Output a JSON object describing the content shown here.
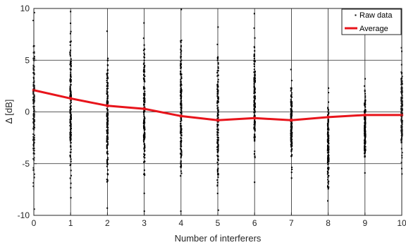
{
  "chart_data": {
    "type": "scatter",
    "title": "",
    "xlabel": "Number of interferers",
    "ylabel": "Δ [dB]",
    "xlim": [
      0,
      10
    ],
    "ylim": [
      -10,
      10
    ],
    "xticks": [
      0,
      1,
      2,
      3,
      4,
      5,
      6,
      7,
      8,
      9,
      10
    ],
    "yticks": [
      -10,
      -5,
      0,
      5,
      10
    ],
    "xtick_labels": [
      "0",
      "1",
      "2",
      "3",
      "4",
      "5",
      "6",
      "7",
      "8",
      "9",
      "10"
    ],
    "ytick_labels": [
      "-10",
      "-5",
      "0",
      "5",
      "10"
    ],
    "grid": true,
    "legend_position": "top-right",
    "series": [
      {
        "name": "Raw data",
        "kind": "scatter",
        "color": "#000000",
        "ranges": [
          {
            "x": 0,
            "y_min": -9.4,
            "y_max": 9.6
          },
          {
            "x": 1,
            "y_min": -8.3,
            "y_max": 9.7
          },
          {
            "x": 2,
            "y_min": -9.3,
            "y_max": 7.8
          },
          {
            "x": 3,
            "y_min": -9.6,
            "y_max": 8.6
          },
          {
            "x": 4,
            "y_min": -9.6,
            "y_max": 9.9
          },
          {
            "x": 5,
            "y_min": -9.5,
            "y_max": 8.2
          },
          {
            "x": 6,
            "y_min": -6.8,
            "y_max": 9.5
          },
          {
            "x": 7,
            "y_min": -6.4,
            "y_max": 4.1
          },
          {
            "x": 8,
            "y_min": -8.6,
            "y_max": 2.3
          },
          {
            "x": 9,
            "y_min": -5.9,
            "y_max": 3.2
          },
          {
            "x": 10,
            "y_min": -6.0,
            "y_max": 6.2
          }
        ]
      },
      {
        "name": "Average",
        "kind": "line",
        "color": "#e8141b",
        "x": [
          0,
          1,
          2,
          3,
          4,
          5,
          6,
          7,
          8,
          9,
          10
        ],
        "y": [
          2.1,
          1.3,
          0.6,
          0.3,
          -0.4,
          -0.8,
          -0.6,
          -0.8,
          -0.5,
          -0.3,
          -0.3
        ]
      }
    ]
  }
}
